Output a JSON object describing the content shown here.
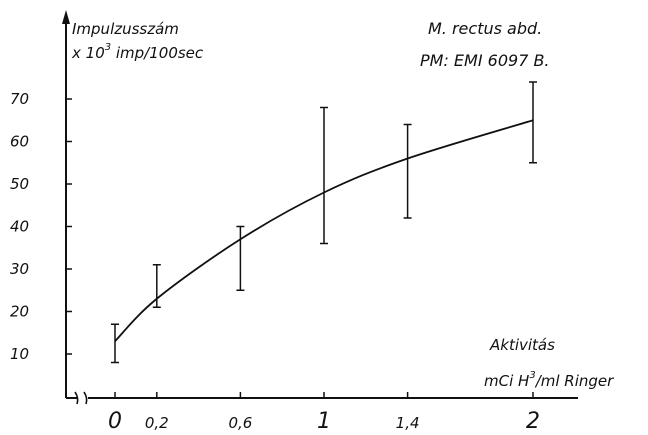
{
  "chart_data": {
    "type": "line",
    "title": "",
    "ylabel_line1": "Impulzusszám",
    "ylabel_line2_prefix": "x 10",
    "ylabel_line2_sup": "3",
    "ylabel_line2_suffix": " imp/100sec",
    "note_line1": "M. rectus abd.",
    "note_line2": "PM: EMI 6097 B.",
    "xlabel_line1": "Aktivitás",
    "xlabel_line2_prefix": "mCi H",
    "xlabel_line2_sup": "3",
    "xlabel_line2_suffix": "/ml Ringer",
    "x_tick_labels": [
      "0",
      "0,2",
      "0,6",
      "1",
      "1,4",
      "2"
    ],
    "y_tick_labels": [
      "10",
      "20",
      "30",
      "40",
      "50",
      "60",
      "70"
    ],
    "ylim": [
      10,
      70
    ],
    "xlim": [
      0,
      2
    ],
    "axis_break": true,
    "series": [
      {
        "x": [
          0,
          0.2,
          0.6,
          1,
          1.4,
          2
        ],
        "y": [
          13,
          23,
          37,
          48,
          56,
          65
        ],
        "err_low": [
          8,
          21,
          25,
          36,
          42,
          55
        ],
        "err_high": [
          17,
          31,
          40,
          68,
          64,
          74
        ]
      }
    ]
  }
}
